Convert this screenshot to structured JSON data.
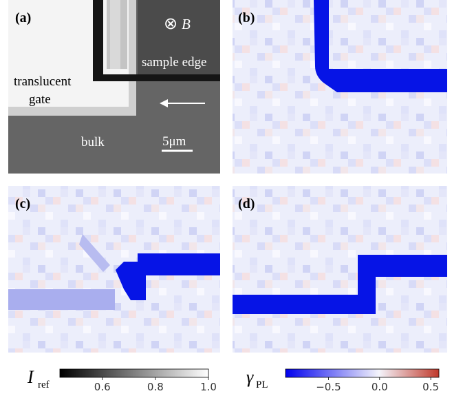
{
  "panels": [
    {
      "label": "(a)",
      "annotations": [
        "⊗",
        "B",
        "sample edge",
        "translucent",
        "gate",
        "bulk",
        "5μm"
      ]
    },
    {
      "label": "(b)"
    },
    {
      "label": "(c)"
    },
    {
      "label": "(d)"
    }
  ],
  "colorbars": [
    {
      "symbol": "I",
      "subscript": "ref",
      "lim": [
        0.44,
        1.0
      ],
      "ticks": [
        0.6,
        0.8,
        {
          "value": 1.0,
          "label": "1.0"
        }
      ]
    },
    {
      "symbol": "γ",
      "subscript": "PL",
      "lim": [
        -0.92,
        0.58
      ],
      "ticks": [
        {
          "value": -0.5,
          "label": "−0.5"
        },
        {
          "value": 0.0,
          "label": "0.0"
        },
        0.5
      ]
    }
  ]
}
